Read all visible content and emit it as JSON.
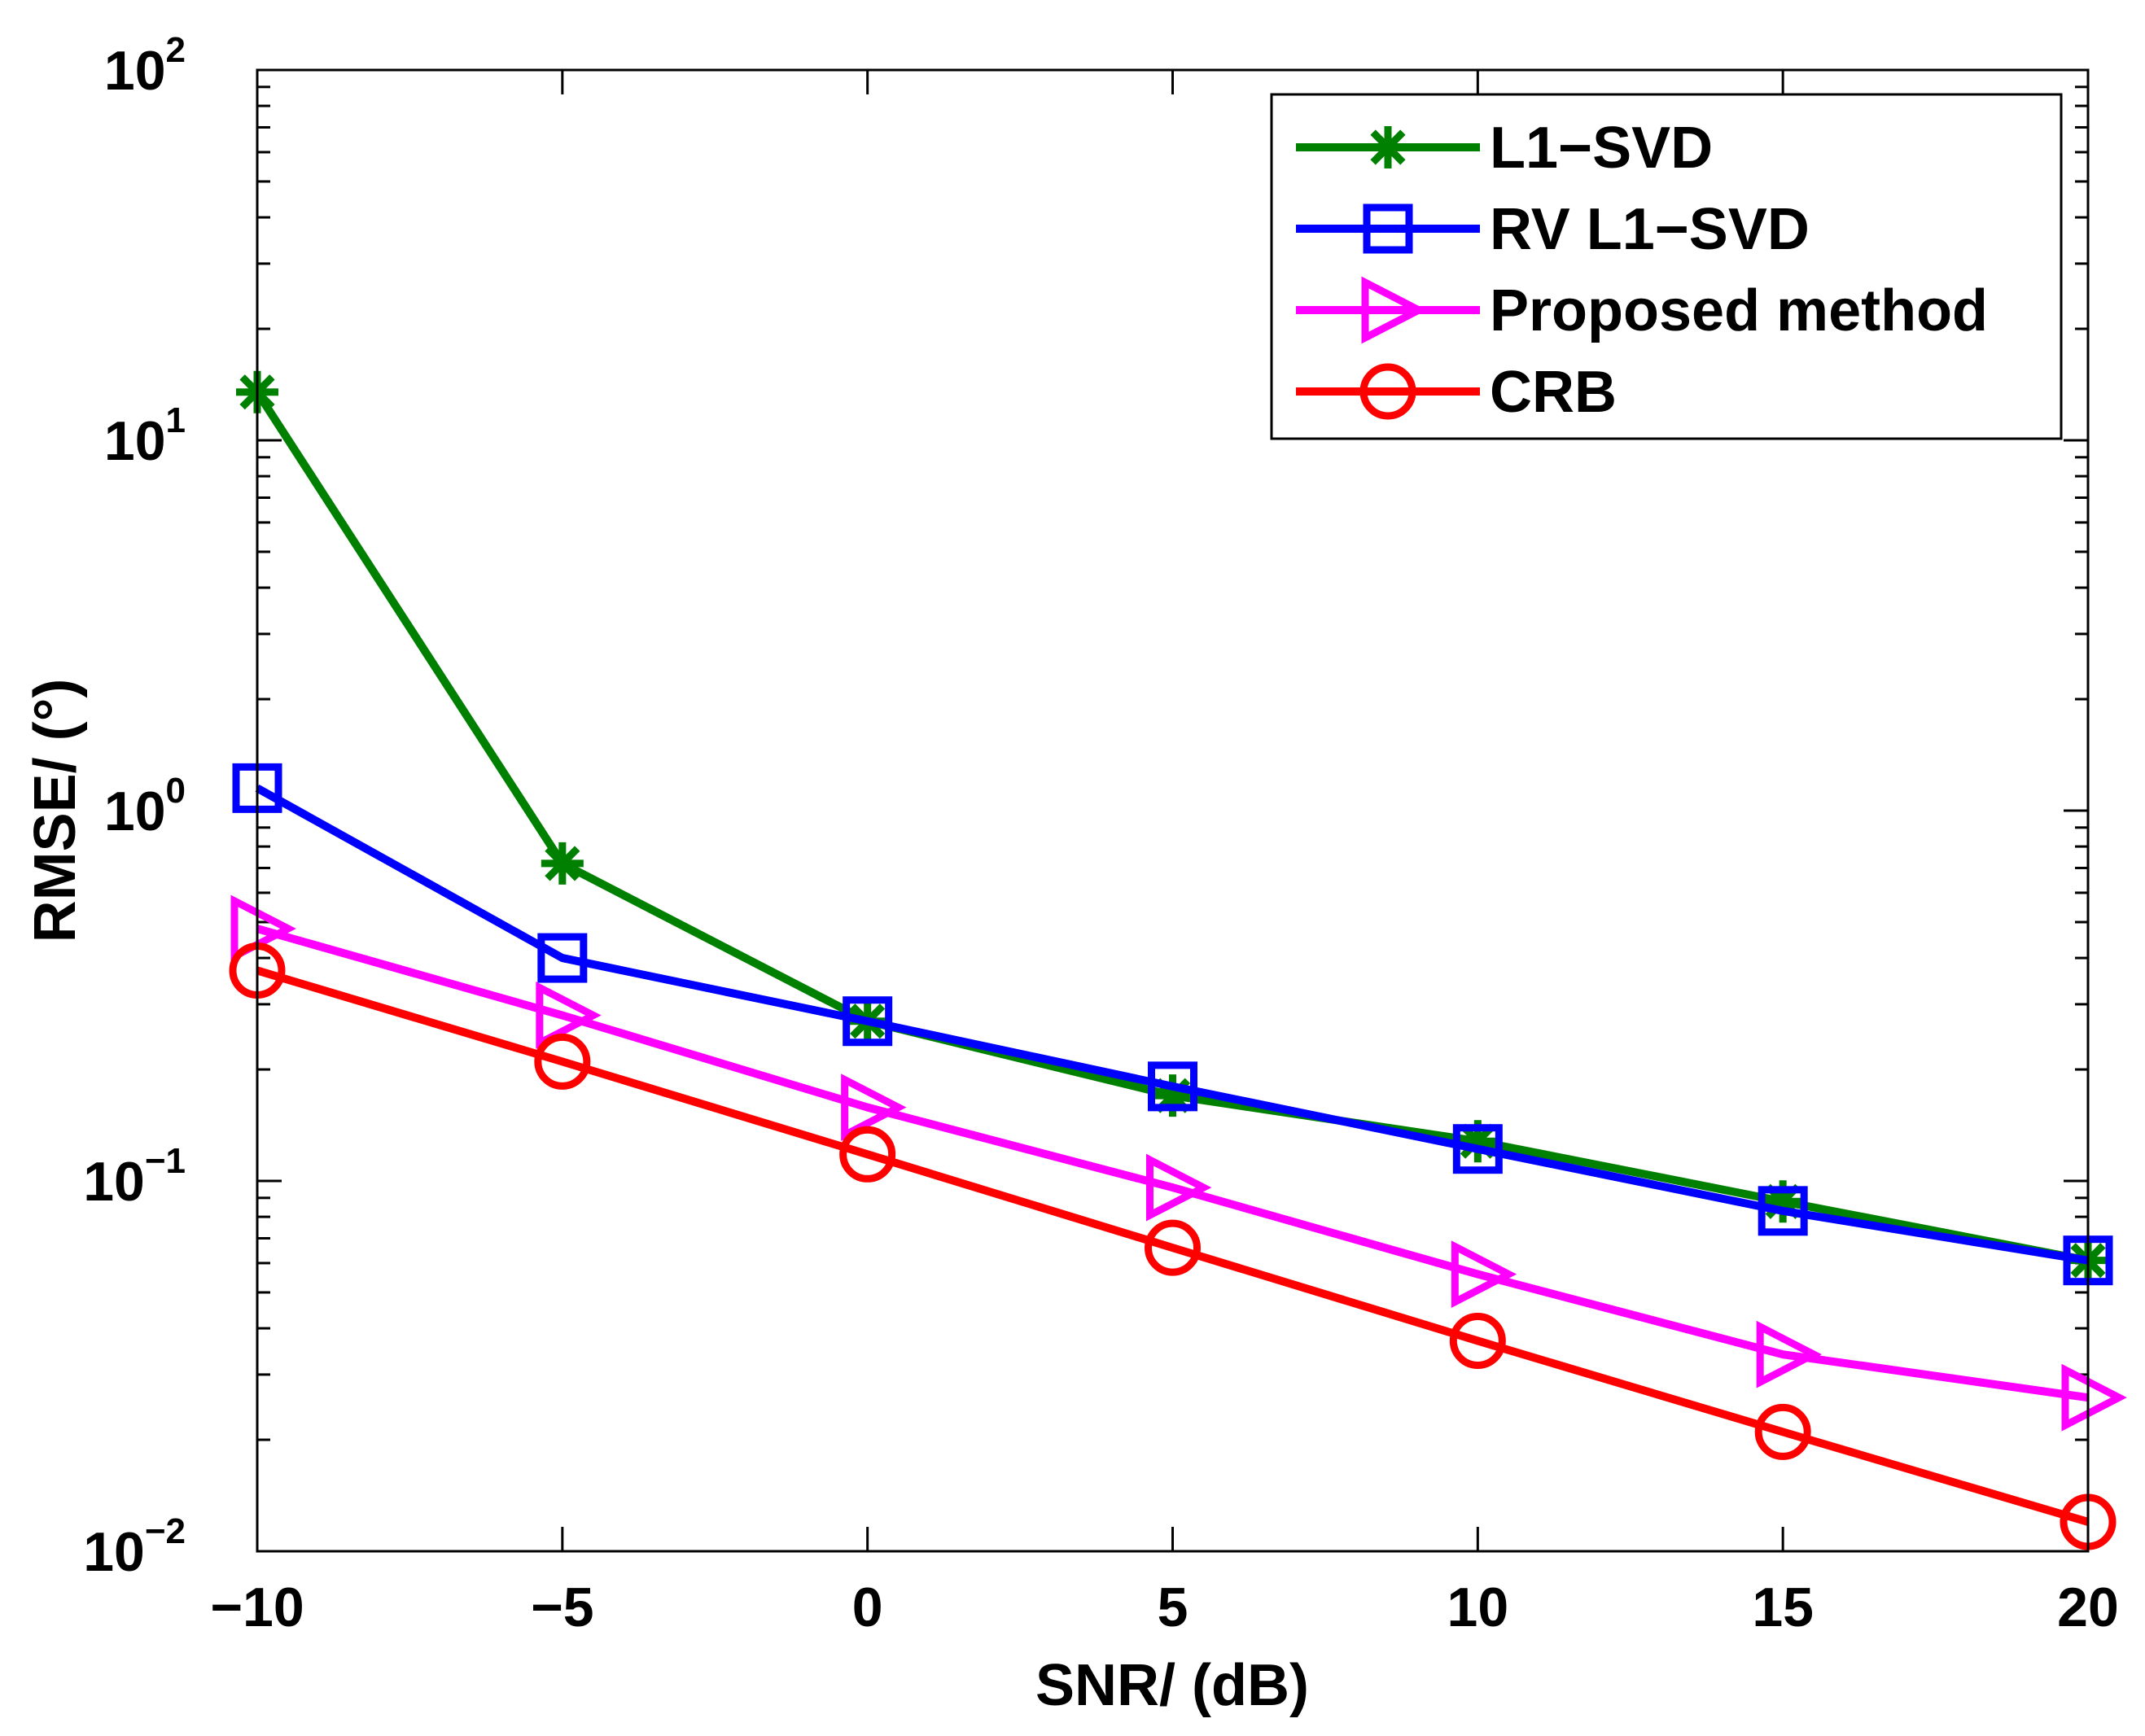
{
  "chart_data": {
    "type": "line",
    "title": "",
    "xlabel": "SNR/ (dB)",
    "ylabel": "RMSE/ (°)",
    "xscale": "linear",
    "yscale": "log",
    "xlim": [
      -10,
      20
    ],
    "ylim": [
      0.01,
      100
    ],
    "x": [
      -10,
      -5,
      0,
      5,
      10,
      15,
      20
    ],
    "x_tick_labels": [
      "−10",
      "−5",
      "0",
      "5",
      "10",
      "15",
      "20"
    ],
    "y_ticks": [
      {
        "base": "10",
        "exp": "−2",
        "value": 0.01
      },
      {
        "base": "10",
        "exp": "−1",
        "value": 0.1
      },
      {
        "base": "10",
        "exp": "0",
        "value": 1
      },
      {
        "base": "10",
        "exp": "1",
        "value": 10
      },
      {
        "base": "10",
        "exp": "2",
        "value": 100
      }
    ],
    "legend_position": "top-right",
    "grid": false,
    "series": [
      {
        "name": "L1−SVD",
        "color": "#008000",
        "marker": "asterisk",
        "values": [
          13.5,
          0.72,
          0.27,
          0.17,
          0.128,
          0.088,
          0.061
        ]
      },
      {
        "name": "RV L1−SVD",
        "color": "#0000ff",
        "marker": "square",
        "values": [
          1.15,
          0.4,
          0.27,
          0.18,
          0.122,
          0.083,
          0.061
        ]
      },
      {
        "name": "Proposed method",
        "color": "#ff00ff",
        "marker": "triangle-right",
        "values": [
          0.48,
          0.28,
          0.158,
          0.096,
          0.056,
          0.034,
          0.026
        ]
      },
      {
        "name": "CRB",
        "color": "#ff0000",
        "marker": "circle",
        "values": [
          0.37,
          0.21,
          0.118,
          0.066,
          0.037,
          0.021,
          0.012
        ]
      }
    ]
  }
}
